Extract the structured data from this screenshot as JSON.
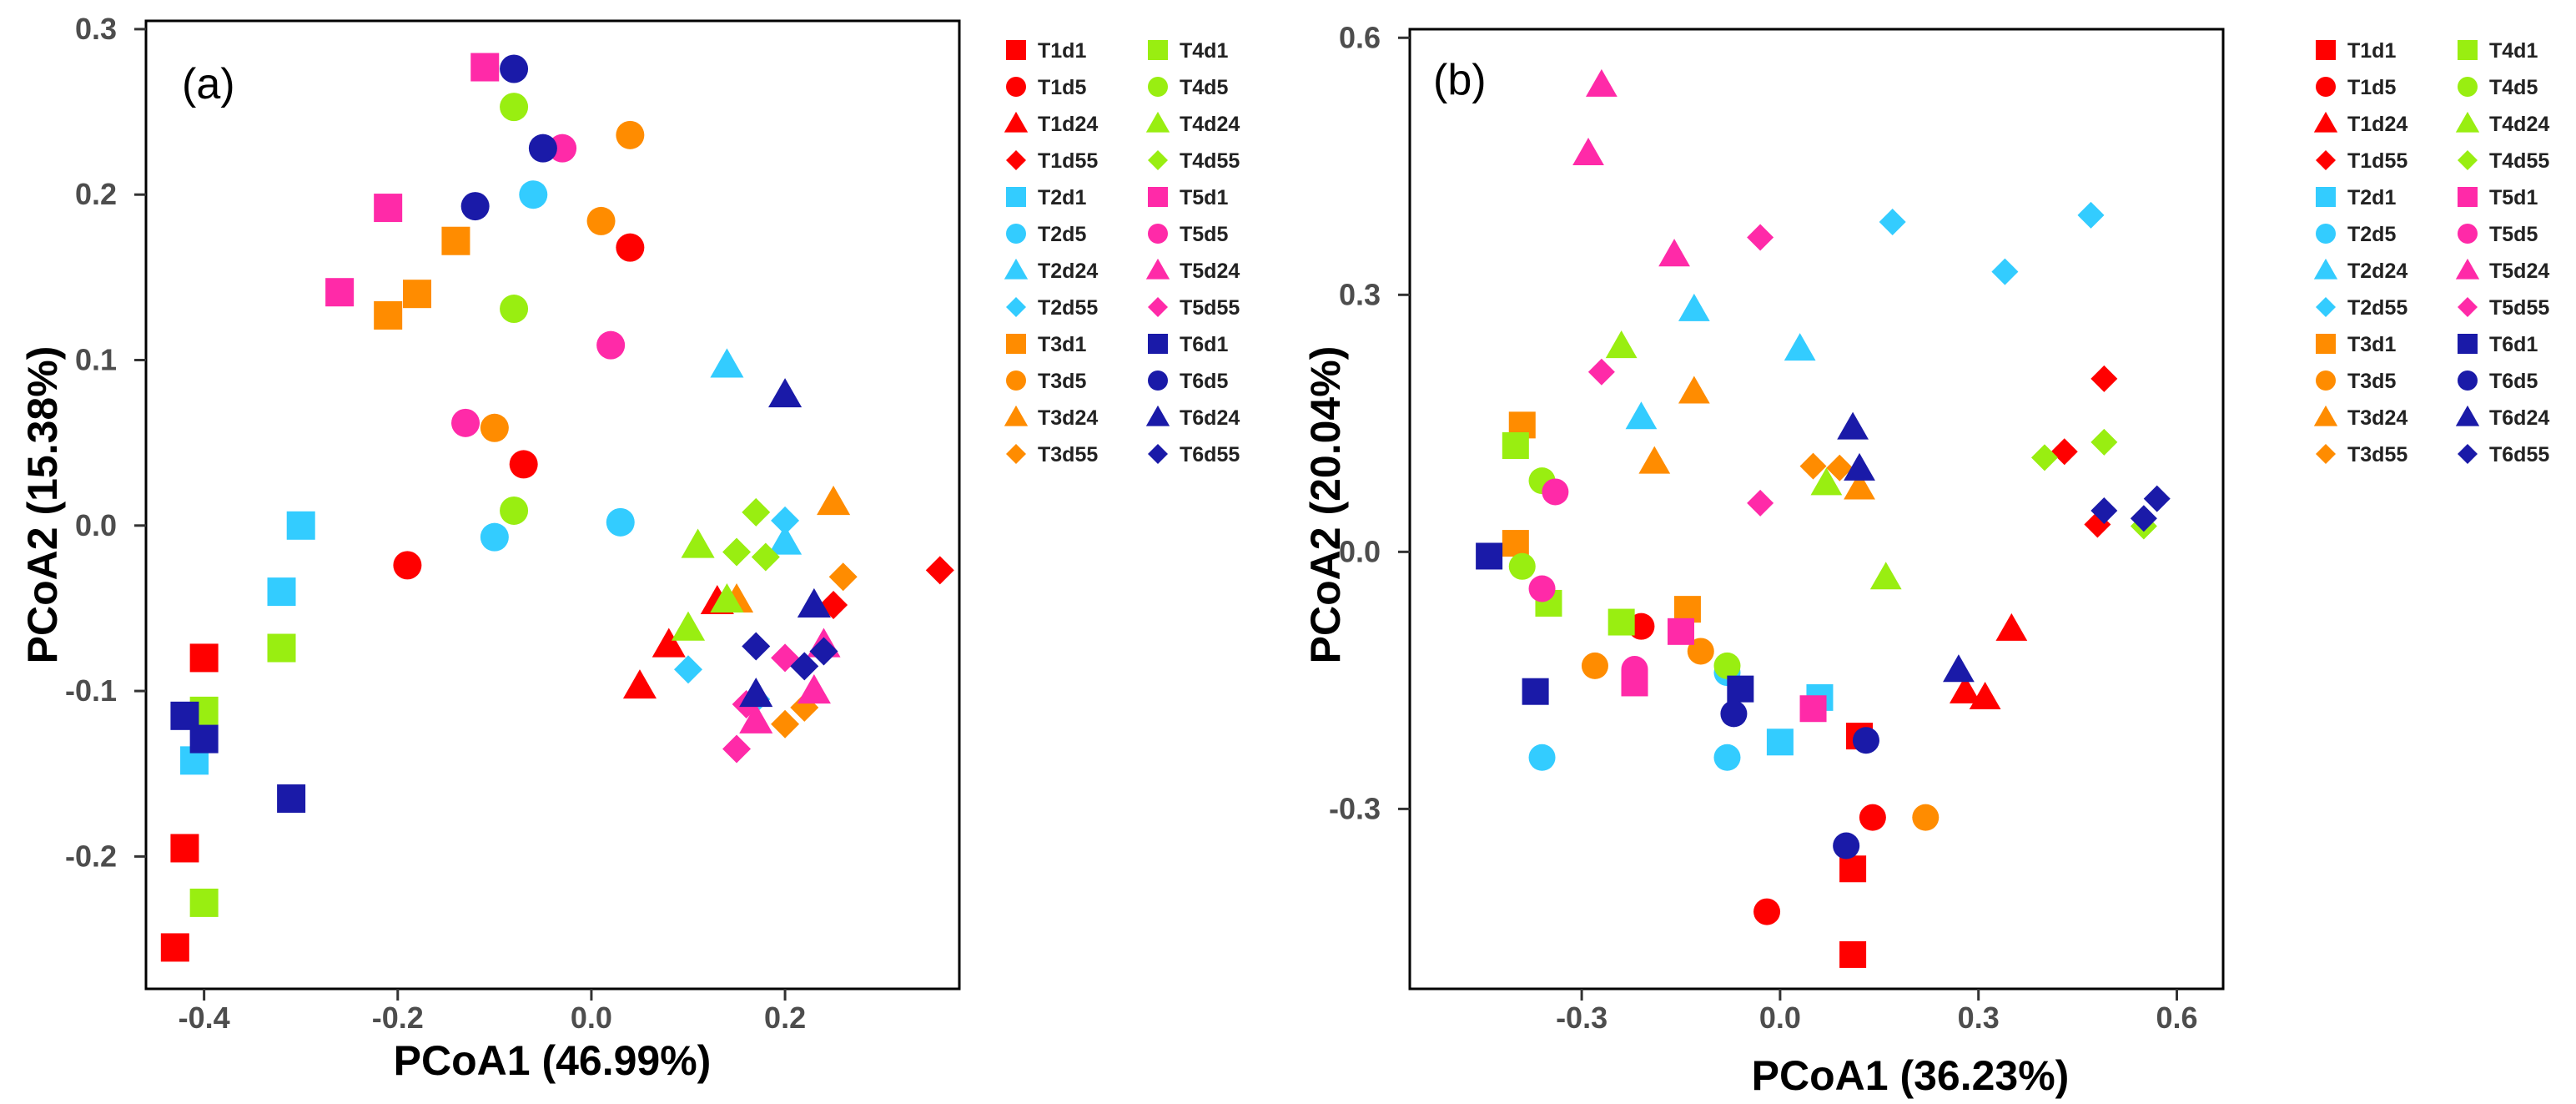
{
  "colors": {
    "T1": "#ff0000",
    "T2": "#33ccff",
    "T3": "#ff8c00",
    "T4": "#99ee11",
    "T5": "#ff2aa8",
    "T6": "#1a1aa8"
  },
  "legend": {
    "labels": [
      "T1d1",
      "T1d5",
      "T1d24",
      "T1d55",
      "T2d1",
      "T2d5",
      "T2d24",
      "T2d55",
      "T3d1",
      "T3d5",
      "T3d24",
      "T3d55",
      "T4d1",
      "T4d5",
      "T4d24",
      "T4d55",
      "T5d1",
      "T5d5",
      "T5d24",
      "T5d55",
      "T6d1",
      "T6d5",
      "T6d24",
      "T6d55"
    ]
  },
  "chart_data": [
    {
      "type": "scatter",
      "panel_label": "(a)",
      "xlabel": "PCoA1 (46.99%)",
      "ylabel": "PCoA2 (15.38%)",
      "xlim": [
        -0.46,
        0.38
      ],
      "ylim": [
        -0.28,
        0.305
      ],
      "xticks": [
        -0.4,
        -0.2,
        0.0,
        0.2
      ],
      "xtick_labels": [
        "-0.4",
        "-0.2",
        "0.0",
        "0.2"
      ],
      "yticks": [
        -0.2,
        -0.1,
        0.0,
        0.1,
        0.2,
        0.3
      ],
      "ytick_labels": [
        "-0.2",
        "-0.1",
        "0.0",
        "0.1",
        "0.2",
        "0.3"
      ],
      "points": [
        {
          "g": "T1d1",
          "x": -0.4,
          "y": -0.08
        },
        {
          "g": "T1d1",
          "x": -0.42,
          "y": -0.195
        },
        {
          "g": "T1d1",
          "x": -0.43,
          "y": -0.255
        },
        {
          "g": "T1d5",
          "x": -0.19,
          "y": -0.024
        },
        {
          "g": "T1d5",
          "x": -0.07,
          "y": 0.037
        },
        {
          "g": "T1d5",
          "x": 0.04,
          "y": 0.168
        },
        {
          "g": "T1d24",
          "x": 0.05,
          "y": -0.097
        },
        {
          "g": "T1d24",
          "x": 0.08,
          "y": -0.072
        },
        {
          "g": "T1d24",
          "x": 0.13,
          "y": -0.046
        },
        {
          "g": "T1d55",
          "x": 0.25,
          "y": -0.048
        },
        {
          "g": "T1d55",
          "x": 0.36,
          "y": -0.027
        },
        {
          "g": "T2d1",
          "x": -0.3,
          "y": 0.0
        },
        {
          "g": "T2d1",
          "x": -0.32,
          "y": -0.04
        },
        {
          "g": "T2d1",
          "x": -0.41,
          "y": -0.142
        },
        {
          "g": "T2d5",
          "x": -0.06,
          "y": 0.2
        },
        {
          "g": "T2d5",
          "x": -0.1,
          "y": -0.007
        },
        {
          "g": "T2d5",
          "x": 0.03,
          "y": 0.002
        },
        {
          "g": "T2d24",
          "x": 0.14,
          "y": 0.097
        },
        {
          "g": "T2d24",
          "x": 0.2,
          "y": -0.01
        },
        {
          "g": "T2d55",
          "x": 0.1,
          "y": -0.087
        },
        {
          "g": "T2d55",
          "x": 0.2,
          "y": 0.003
        },
        {
          "g": "T2d55",
          "x": 0.17,
          "y": -0.105
        },
        {
          "g": "T3d1",
          "x": -0.18,
          "y": 0.14
        },
        {
          "g": "T3d1",
          "x": -0.21,
          "y": 0.127
        },
        {
          "g": "T3d1",
          "x": -0.14,
          "y": 0.172
        },
        {
          "g": "T3d5",
          "x": 0.01,
          "y": 0.184
        },
        {
          "g": "T3d5",
          "x": 0.04,
          "y": 0.236
        },
        {
          "g": "T3d5",
          "x": -0.1,
          "y": 0.059
        },
        {
          "g": "T3d24",
          "x": 0.25,
          "y": 0.014
        },
        {
          "g": "T3d24",
          "x": 0.15,
          "y": -0.045
        },
        {
          "g": "T3d55",
          "x": 0.2,
          "y": -0.12
        },
        {
          "g": "T3d55",
          "x": 0.22,
          "y": -0.11
        },
        {
          "g": "T3d55",
          "x": 0.26,
          "y": -0.031
        },
        {
          "g": "T4d1",
          "x": -0.32,
          "y": -0.074
        },
        {
          "g": "T4d1",
          "x": -0.4,
          "y": -0.112
        },
        {
          "g": "T4d1",
          "x": -0.4,
          "y": -0.228
        },
        {
          "g": "T4d5",
          "x": -0.08,
          "y": 0.253
        },
        {
          "g": "T4d5",
          "x": -0.08,
          "y": 0.131
        },
        {
          "g": "T4d5",
          "x": -0.08,
          "y": 0.009
        },
        {
          "g": "T4d24",
          "x": 0.11,
          "y": -0.012
        },
        {
          "g": "T4d24",
          "x": 0.1,
          "y": -0.062
        },
        {
          "g": "T4d24",
          "x": 0.14,
          "y": -0.045
        },
        {
          "g": "T4d55",
          "x": 0.15,
          "y": -0.016
        },
        {
          "g": "T4d55",
          "x": 0.17,
          "y": 0.008
        },
        {
          "g": "T4d55",
          "x": 0.18,
          "y": -0.019
        },
        {
          "g": "T5d1",
          "x": -0.11,
          "y": 0.277
        },
        {
          "g": "T5d1",
          "x": -0.21,
          "y": 0.192
        },
        {
          "g": "T5d1",
          "x": -0.26,
          "y": 0.141
        },
        {
          "g": "T5d5",
          "x": -0.03,
          "y": 0.228
        },
        {
          "g": "T5d5",
          "x": 0.02,
          "y": 0.109
        },
        {
          "g": "T5d5",
          "x": -0.13,
          "y": 0.062
        },
        {
          "g": "T5d24",
          "x": 0.17,
          "y": -0.118
        },
        {
          "g": "T5d24",
          "x": 0.23,
          "y": -0.1
        },
        {
          "g": "T5d24",
          "x": 0.24,
          "y": -0.072
        },
        {
          "g": "T5d55",
          "x": 0.15,
          "y": -0.135
        },
        {
          "g": "T5d55",
          "x": 0.16,
          "y": -0.108
        },
        {
          "g": "T5d55",
          "x": 0.2,
          "y": -0.08
        },
        {
          "g": "T6d1",
          "x": -0.31,
          "y": -0.165
        },
        {
          "g": "T6d1",
          "x": -0.42,
          "y": -0.115
        },
        {
          "g": "T6d1",
          "x": -0.4,
          "y": -0.129
        },
        {
          "g": "T6d5",
          "x": -0.08,
          "y": 0.276
        },
        {
          "g": "T6d5",
          "x": -0.05,
          "y": 0.228
        },
        {
          "g": "T6d5",
          "x": -0.12,
          "y": 0.193
        },
        {
          "g": "T6d24",
          "x": 0.2,
          "y": 0.079
        },
        {
          "g": "T6d24",
          "x": 0.23,
          "y": -0.048
        },
        {
          "g": "T6d24",
          "x": 0.17,
          "y": -0.102
        },
        {
          "g": "T6d55",
          "x": 0.17,
          "y": -0.073
        },
        {
          "g": "T6d55",
          "x": 0.22,
          "y": -0.085
        },
        {
          "g": "T6d55",
          "x": 0.24,
          "y": -0.076
        }
      ]
    },
    {
      "type": "scatter",
      "panel_label": "(b)",
      "xlabel": "PCoA1 (36.23%)",
      "ylabel": "PCoA2 (20.04%)",
      "xlim": [
        -0.56,
        0.67
      ],
      "ylim": [
        -0.51,
        0.61
      ],
      "xticks": [
        -0.3,
        0.0,
        0.3,
        0.6
      ],
      "xtick_labels": [
        "-0.3",
        "0.0",
        "0.3",
        "0.6"
      ],
      "yticks": [
        -0.3,
        0.0,
        0.3,
        0.6
      ],
      "ytick_labels": [
        "-0.3",
        "0.0",
        "0.3",
        "0.6"
      ],
      "points": [
        {
          "g": "T1d1",
          "x": 0.12,
          "y": -0.215
        },
        {
          "g": "T1d1",
          "x": 0.11,
          "y": -0.37
        },
        {
          "g": "T1d1",
          "x": 0.11,
          "y": -0.47
        },
        {
          "g": "T1d5",
          "x": -0.21,
          "y": -0.087
        },
        {
          "g": "T1d5",
          "x": 0.14,
          "y": -0.31
        },
        {
          "g": "T1d5",
          "x": -0.02,
          "y": -0.42
        },
        {
          "g": "T1d24",
          "x": 0.35,
          "y": -0.09
        },
        {
          "g": "T1d24",
          "x": 0.31,
          "y": -0.17
        },
        {
          "g": "T1d24",
          "x": 0.28,
          "y": -0.163
        },
        {
          "g": "T1d55",
          "x": 0.49,
          "y": 0.202
        },
        {
          "g": "T1d55",
          "x": 0.43,
          "y": 0.117
        },
        {
          "g": "T1d55",
          "x": 0.48,
          "y": 0.032
        },
        {
          "g": "T2d1",
          "x": 0.06,
          "y": -0.17
        },
        {
          "g": "T2d1",
          "x": 0.0,
          "y": -0.222
        },
        {
          "g": "T2d5",
          "x": -0.36,
          "y": -0.24
        },
        {
          "g": "T2d5",
          "x": -0.08,
          "y": -0.24
        },
        {
          "g": "T2d5",
          "x": -0.08,
          "y": -0.141
        },
        {
          "g": "T2d24",
          "x": -0.13,
          "y": 0.283
        },
        {
          "g": "T2d24",
          "x": 0.03,
          "y": 0.237
        },
        {
          "g": "T2d24",
          "x": -0.21,
          "y": 0.157
        },
        {
          "g": "T2d55",
          "x": 0.17,
          "y": 0.385
        },
        {
          "g": "T2d55",
          "x": 0.34,
          "y": 0.327
        },
        {
          "g": "T2d55",
          "x": 0.47,
          "y": 0.393
        },
        {
          "g": "T3d1",
          "x": -0.39,
          "y": 0.148
        },
        {
          "g": "T3d1",
          "x": -0.4,
          "y": 0.01
        },
        {
          "g": "T3d1",
          "x": -0.14,
          "y": -0.067
        },
        {
          "g": "T3d5",
          "x": -0.12,
          "y": -0.116
        },
        {
          "g": "T3d5",
          "x": -0.28,
          "y": -0.133
        },
        {
          "g": "T3d5",
          "x": 0.22,
          "y": -0.31
        },
        {
          "g": "T3d24",
          "x": -0.13,
          "y": 0.187
        },
        {
          "g": "T3d24",
          "x": -0.19,
          "y": 0.105
        },
        {
          "g": "T3d24",
          "x": 0.12,
          "y": 0.075
        },
        {
          "g": "T3d55",
          "x": 0.05,
          "y": 0.1
        },
        {
          "g": "T3d55",
          "x": 0.09,
          "y": 0.098
        },
        {
          "g": "T4d1",
          "x": -0.4,
          "y": 0.124
        },
        {
          "g": "T4d1",
          "x": -0.35,
          "y": -0.06
        },
        {
          "g": "T4d1",
          "x": -0.24,
          "y": -0.082
        },
        {
          "g": "T4d5",
          "x": -0.36,
          "y": 0.083
        },
        {
          "g": "T4d5",
          "x": -0.39,
          "y": -0.017
        },
        {
          "g": "T4d5",
          "x": -0.08,
          "y": -0.133
        },
        {
          "g": "T4d24",
          "x": -0.24,
          "y": 0.24
        },
        {
          "g": "T4d24",
          "x": 0.07,
          "y": 0.08
        },
        {
          "g": "T4d24",
          "x": 0.16,
          "y": -0.03
        },
        {
          "g": "T4d55",
          "x": 0.4,
          "y": 0.11
        },
        {
          "g": "T4d55",
          "x": 0.49,
          "y": 0.128
        },
        {
          "g": "T4d55",
          "x": 0.55,
          "y": 0.03
        },
        {
          "g": "T5d1",
          "x": -0.22,
          "y": -0.153
        },
        {
          "g": "T5d1",
          "x": -0.15,
          "y": -0.093
        },
        {
          "g": "T5d1",
          "x": 0.05,
          "y": -0.183
        },
        {
          "g": "T5d5",
          "x": -0.34,
          "y": 0.07
        },
        {
          "g": "T5d5",
          "x": -0.36,
          "y": -0.043
        },
        {
          "g": "T5d5",
          "x": -0.22,
          "y": -0.137
        },
        {
          "g": "T5d24",
          "x": -0.27,
          "y": 0.545
        },
        {
          "g": "T5d24",
          "x": -0.29,
          "y": 0.465
        },
        {
          "g": "T5d24",
          "x": -0.16,
          "y": 0.347
        },
        {
          "g": "T5d55",
          "x": -0.03,
          "y": 0.367
        },
        {
          "g": "T5d55",
          "x": -0.27,
          "y": 0.21
        },
        {
          "g": "T5d55",
          "x": -0.03,
          "y": 0.057
        },
        {
          "g": "T6d1",
          "x": -0.44,
          "y": -0.005
        },
        {
          "g": "T6d1",
          "x": -0.37,
          "y": -0.163
        },
        {
          "g": "T6d1",
          "x": -0.06,
          "y": -0.16
        },
        {
          "g": "T6d5",
          "x": -0.07,
          "y": -0.189
        },
        {
          "g": "T6d5",
          "x": 0.13,
          "y": -0.22
        },
        {
          "g": "T6d5",
          "x": 0.1,
          "y": -0.343
        },
        {
          "g": "T6d24",
          "x": 0.11,
          "y": 0.145
        },
        {
          "g": "T6d24",
          "x": 0.12,
          "y": 0.097
        },
        {
          "g": "T6d24",
          "x": 0.27,
          "y": -0.138
        },
        {
          "g": "T6d55",
          "x": 0.49,
          "y": 0.048
        },
        {
          "g": "T6d55",
          "x": 0.55,
          "y": 0.039
        },
        {
          "g": "T6d55",
          "x": 0.57,
          "y": 0.062
        }
      ]
    }
  ]
}
